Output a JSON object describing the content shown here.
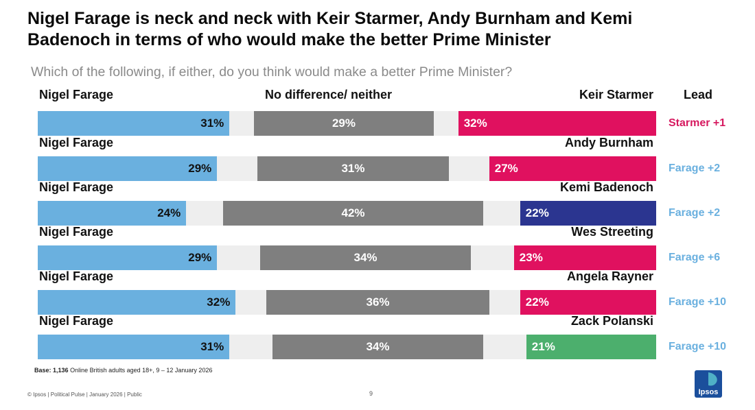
{
  "title": "Nigel Farage is neck and neck with Keir Starmer, Andy Burnham and Kemi Badenoch in terms of who would make the better Prime Minister",
  "subtitle": "Which of the following, if either, do you think would make a better Prime Minister?",
  "headers": {
    "left": "Nigel Farage",
    "middle": "No difference/ neither",
    "right": "Keir Starmer",
    "lead": "Lead"
  },
  "colors": {
    "farage": "#6ab0df",
    "neither": "#7f7f7f",
    "gap": "#eeeeee",
    "labour": "#e0115f",
    "conservative": "#2b3590",
    "green": "#4caf6d",
    "lead_labour": "#d6195f",
    "lead_farage": "#6ab0df"
  },
  "chart_data": {
    "type": "bar",
    "stacked": true,
    "orientation": "horizontal",
    "scale_max": 100,
    "categories": [
      "Keir Starmer",
      "Andy Burnham",
      "Kemi Badenoch",
      "Wes Streeting",
      "Angela Rayner",
      "Zack Polanski"
    ],
    "series": [
      {
        "name": "Nigel Farage",
        "values": [
          31,
          29,
          24,
          29,
          32,
          31
        ]
      },
      {
        "name": "No difference/ neither",
        "values": [
          29,
          31,
          42,
          34,
          36,
          34
        ]
      },
      {
        "values": [
          32,
          27,
          22,
          23,
          22,
          21
        ]
      }
    ],
    "rows": [
      {
        "left_label": "",
        "right_label": "Keir Starmer",
        "farage": 31,
        "neither": 29,
        "other": 32,
        "farage_text": "31%",
        "neither_text": "29%",
        "other_text": "32%",
        "other_color": "#e0115f",
        "lead": "Starmer +1",
        "lead_color": "#d6195f"
      },
      {
        "left_label": "Nigel Farage",
        "right_label": "Andy Burnham",
        "farage": 29,
        "neither": 31,
        "other": 27,
        "farage_text": "29%",
        "neither_text": "31%",
        "other_text": "27%",
        "other_color": "#e0115f",
        "lead": "Farage +2",
        "lead_color": "#6ab0df"
      },
      {
        "left_label": "Nigel Farage",
        "right_label": "Kemi Badenoch",
        "farage": 24,
        "neither": 42,
        "other": 22,
        "farage_text": "24%",
        "neither_text": "42%",
        "other_text": "22%",
        "other_color": "#2b3590",
        "lead": "Farage +2",
        "lead_color": "#6ab0df"
      },
      {
        "left_label": "Nigel Farage",
        "right_label": "Wes Streeting",
        "farage": 29,
        "neither": 34,
        "other": 23,
        "farage_text": "29%",
        "neither_text": "34%",
        "other_text": "23%",
        "other_color": "#e0115f",
        "lead": "Farage +6",
        "lead_color": "#6ab0df"
      },
      {
        "left_label": "Nigel Farage",
        "right_label": "Angela Rayner",
        "farage": 32,
        "neither": 36,
        "other": 22,
        "farage_text": "32%",
        "neither_text": "36%",
        "other_text": "22%",
        "other_color": "#e0115f",
        "lead": "Farage +10",
        "lead_color": "#6ab0df"
      },
      {
        "left_label": "Nigel Farage",
        "right_label": "Zack Polanski",
        "farage": 31,
        "neither": 34,
        "other": 21,
        "farage_text": "31%",
        "neither_text": "34%",
        "other_text": "21%",
        "other_color": "#4caf6d",
        "lead": "Farage +10",
        "lead_color": "#6ab0df"
      }
    ]
  },
  "base": {
    "label": "Base:",
    "count": "1,136",
    "text": " Online British adults aged 18+,  9 – 12 January 2026"
  },
  "footer": "© Ipsos | Political Pulse | January 2026 | Public",
  "page_number": "9",
  "logo": {
    "text": "Ipsos",
    "color": "#1b4f9c"
  }
}
